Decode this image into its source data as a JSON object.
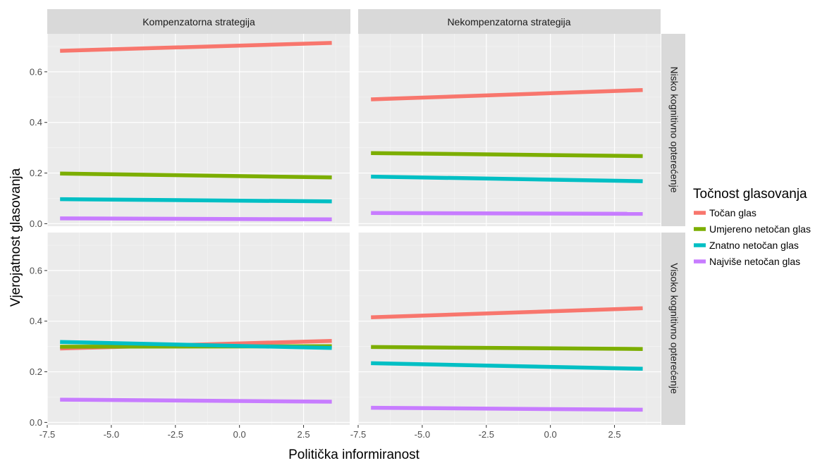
{
  "chart_data": {
    "type": "line",
    "xlabel": "Politička informiranost",
    "ylabel": "Vjerojatnost glasovanja",
    "xlim": [
      -7.5,
      4.3
    ],
    "ylim": [
      -0.01,
      0.75
    ],
    "x_ticks": [
      -7.5,
      -5.0,
      -2.5,
      0.0,
      2.5
    ],
    "x_tick_labels": [
      "-7.5",
      "-5.0",
      "-2.5",
      "0.0",
      "2.5"
    ],
    "y_ticks": [
      0.0,
      0.2,
      0.4,
      0.6
    ],
    "y_tick_labels": [
      "0.0",
      "0.2",
      "0.4",
      "0.6"
    ],
    "grid": true,
    "legend": {
      "title": "Točnost glasovanja",
      "position": "right",
      "entries": [
        {
          "label": "Točan glas",
          "color": "#F8766D"
        },
        {
          "label": "Umjereno netočan glas",
          "color": "#7CAE00"
        },
        {
          "label": "Znatno netočan glas",
          "color": "#00BFC4"
        },
        {
          "label": "Najviše netočan glas",
          "color": "#C77CFF"
        }
      ]
    },
    "col_strips": [
      "Kompenzatorna strategija",
      "Nekompenzatorna strategija"
    ],
    "row_strips": [
      "Nisko kognitivno opterećenje",
      "Visoko kognitivno opterećenje"
    ],
    "panels": [
      {
        "row": 0,
        "col": 0,
        "series": [
          {
            "name": "Točan glas",
            "x": [
              -7.0,
              3.6
            ],
            "y": [
              0.683,
              0.714
            ]
          },
          {
            "name": "Umjereno netočan glas",
            "x": [
              -7.0,
              3.6
            ],
            "y": [
              0.198,
              0.183
            ]
          },
          {
            "name": "Znatno netočan glas",
            "x": [
              -7.0,
              3.6
            ],
            "y": [
              0.097,
              0.088
            ]
          },
          {
            "name": "Najviše netočan glas",
            "x": [
              -7.0,
              3.6
            ],
            "y": [
              0.021,
              0.017
            ]
          }
        ]
      },
      {
        "row": 0,
        "col": 1,
        "series": [
          {
            "name": "Točan glas",
            "x": [
              -7.0,
              3.6
            ],
            "y": [
              0.491,
              0.528
            ]
          },
          {
            "name": "Umjereno netočan glas",
            "x": [
              -7.0,
              3.6
            ],
            "y": [
              0.279,
              0.267
            ]
          },
          {
            "name": "Znatno netočan glas",
            "x": [
              -7.0,
              3.6
            ],
            "y": [
              0.186,
              0.168
            ]
          },
          {
            "name": "Najviše netočan glas",
            "x": [
              -7.0,
              3.6
            ],
            "y": [
              0.042,
              0.039
            ]
          }
        ]
      },
      {
        "row": 1,
        "col": 0,
        "series": [
          {
            "name": "Točan glas",
            "x": [
              -7.0,
              3.6
            ],
            "y": [
              0.292,
              0.322
            ]
          },
          {
            "name": "Umjereno netočan glas",
            "x": [
              -7.0,
              3.6
            ],
            "y": [
              0.299,
              0.301
            ]
          },
          {
            "name": "Znatno netočan glas",
            "x": [
              -7.0,
              3.6
            ],
            "y": [
              0.318,
              0.294
            ]
          },
          {
            "name": "Najviše netočan glas",
            "x": [
              -7.0,
              3.6
            ],
            "y": [
              0.09,
              0.082
            ]
          }
        ]
      },
      {
        "row": 1,
        "col": 1,
        "series": [
          {
            "name": "Točan glas",
            "x": [
              -7.0,
              3.6
            ],
            "y": [
              0.415,
              0.451
            ]
          },
          {
            "name": "Umjereno netočan glas",
            "x": [
              -7.0,
              3.6
            ],
            "y": [
              0.298,
              0.29
            ]
          },
          {
            "name": "Znatno netočan glas",
            "x": [
              -7.0,
              3.6
            ],
            "y": [
              0.234,
              0.212
            ]
          },
          {
            "name": "Najviše netočan glas",
            "x": [
              -7.0,
              3.6
            ],
            "y": [
              0.058,
              0.05
            ]
          }
        ]
      }
    ]
  }
}
